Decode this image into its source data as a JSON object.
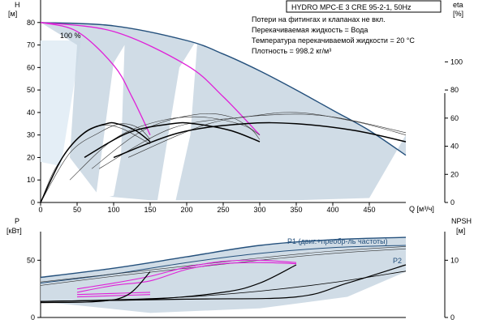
{
  "chart_data": [
    {
      "type": "line",
      "title": "HYDRO MPC-E 3 CRE 95-2-1, 50Hz",
      "notes": [
        "Потери на фитингах и клапанах не вкл.",
        "Перекачиваемая жидкость = Вода",
        "Температура перекачиваемой жидкости = 20 °C",
        "Плотность = 998.2 кг/м³"
      ],
      "annotation": "100 %",
      "xlabel": "Q [м³/ч]",
      "xlim": [
        0,
        500
      ],
      "xticks": [
        0,
        50,
        100,
        150,
        200,
        250,
        300,
        350,
        400,
        450
      ],
      "ylabel_left": [
        "H",
        "[м]"
      ],
      "ylim_left": [
        0,
        90
      ],
      "yticks_left": [
        0,
        10,
        20,
        30,
        40,
        50,
        60,
        70,
        80
      ],
      "ylabel_right": [
        "eta",
        "[%]"
      ],
      "ylim_right": [
        0,
        144
      ],
      "yticks_right": [
        0,
        20,
        40,
        60,
        80,
        100
      ],
      "grid": false,
      "colors": {
        "head_envelope": "#24507c",
        "head_pink": "#e020d8",
        "efficiency": "#000000",
        "thin": "#333333",
        "shade": "#c8d6e2",
        "light_shade": "#e4eef6"
      },
      "head_max_curve": [
        [
          0,
          80
        ],
        [
          100,
          78.5
        ],
        [
          200,
          72
        ],
        [
          250,
          66
        ],
        [
          300,
          58.5
        ],
        [
          350,
          50
        ],
        [
          400,
          41
        ],
        [
          450,
          32
        ],
        [
          500,
          21
        ]
      ],
      "head_one_pump": [
        [
          0,
          80
        ],
        [
          50,
          76
        ],
        [
          100,
          61
        ],
        [
          125,
          47
        ],
        [
          150,
          30
        ]
      ],
      "head_two_pumps": [
        [
          0,
          80
        ],
        [
          100,
          76
        ],
        [
          200,
          61
        ],
        [
          250,
          47
        ],
        [
          300,
          30
        ]
      ],
      "head_three_pumps_end": [
        [
          300,
          30
        ],
        [
          500,
          30
        ]
      ],
      "series": [
        {
          "values": [
            [
              0,
              0
            ],
            [
              30,
              20
            ],
            [
              60,
              31
            ],
            [
              90,
              35
            ],
            [
              105,
              35
            ],
            [
              130,
              32
            ],
            [
              150,
              27
            ]
          ]
        },
        {
          "values": [
            [
              60,
              20
            ],
            [
              120,
              31
            ],
            [
              180,
              35
            ],
            [
              210,
              35
            ],
            [
              260,
              32
            ],
            [
              300,
              27
            ]
          ]
        },
        {
          "values": [
            [
              100,
              20
            ],
            [
              190,
              31
            ],
            [
              280,
              35
            ],
            [
              350,
              35
            ],
            [
              430,
              32
            ],
            [
              500,
              27
            ]
          ]
        }
      ]
    },
    {
      "type": "line",
      "xlim": [
        0,
        500
      ],
      "ylabel_left": [
        "P",
        "[кВт]"
      ],
      "ylim_left": [
        0,
        75
      ],
      "yticks_left": [
        0,
        50
      ],
      "ylabel_right": [
        "NPSH",
        "[м]"
      ],
      "ylim_right": [
        0,
        15
      ],
      "yticks_right": [
        0,
        10
      ],
      "grid": false,
      "series": [
        {
          "name": "P1 (двиг.+преобр-ль частоты)",
          "values": [
            [
              0,
              35
            ],
            [
              100,
              43
            ],
            [
              200,
              53
            ],
            [
              300,
              63
            ],
            [
              400,
              68
            ],
            [
              500,
              70
            ]
          ]
        },
        {
          "name": "P2",
          "values": [
            [
              0,
              30
            ],
            [
              100,
              38
            ],
            [
              200,
              48
            ],
            [
              300,
              56
            ],
            [
              400,
              61
            ],
            [
              500,
              63
            ]
          ]
        }
      ],
      "npsh_curve": [
        [
          0,
          2.8
        ],
        [
          100,
          3.1
        ],
        [
          200,
          3.6
        ],
        [
          300,
          4.6
        ],
        [
          400,
          6.1
        ],
        [
          500,
          8.1
        ]
      ]
    }
  ]
}
